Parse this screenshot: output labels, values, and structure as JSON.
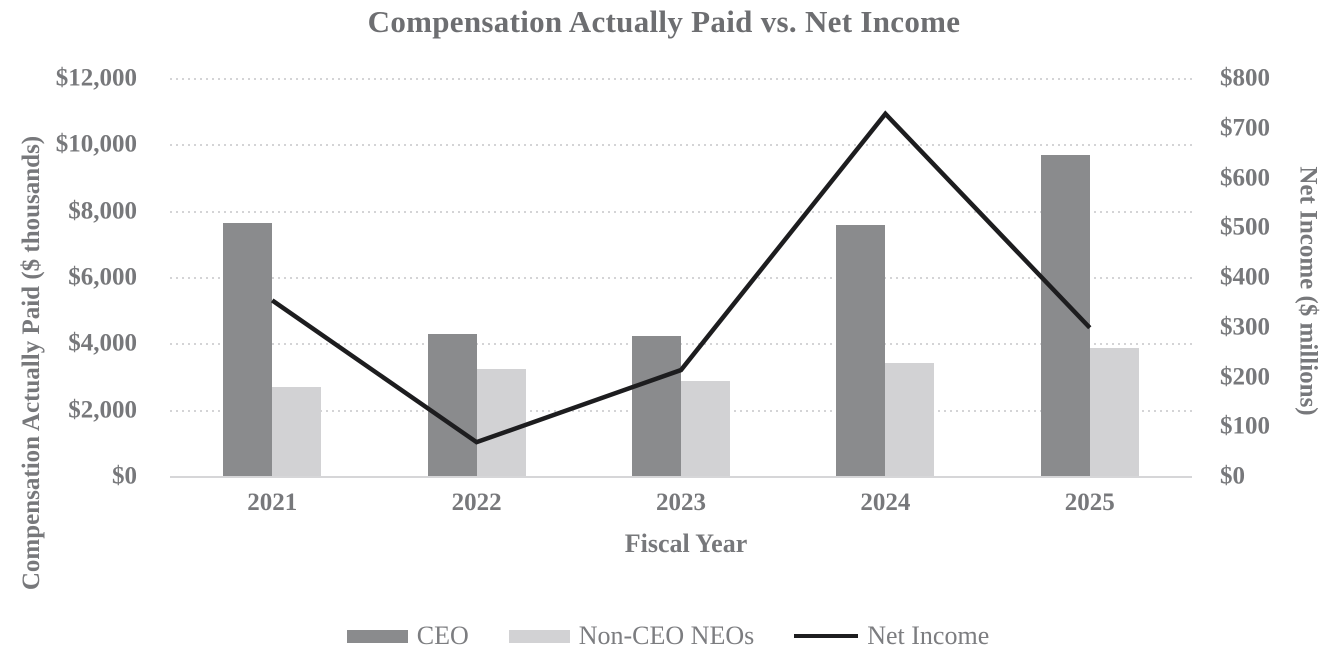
{
  "page": {
    "background": "#ffffff"
  },
  "chart_data": {
    "type": "combo-bar-line",
    "title": "Compensation Actually Paid vs. Net Income",
    "categories": [
      "2021",
      "2022",
      "2023",
      "2024",
      "2025"
    ],
    "series": [
      {
        "name": "CEO",
        "type": "bar",
        "axis": "left",
        "color": "#8a8b8d",
        "values": [
          7650,
          4300,
          4250,
          7600,
          9700
        ]
      },
      {
        "name": "Non-CEO NEOs",
        "type": "bar",
        "axis": "left",
        "color": "#d2d2d4",
        "values": [
          2700,
          3250,
          2900,
          3450,
          3900
        ]
      },
      {
        "name": "Net Income",
        "type": "line",
        "axis": "right",
        "color": "#1d1d1f",
        "values": [
          355,
          70,
          215,
          730,
          300
        ]
      }
    ],
    "x_axis": {
      "title": "Fiscal Year",
      "tick_labels": [
        "2021",
        "2022",
        "2023",
        "2024",
        "2025"
      ]
    },
    "left_axis": {
      "title": "Compensation Actually Paid ($ thousands)",
      "min": 0,
      "max": 12000,
      "tick_step": 2000,
      "tick_labels": [
        "$0",
        "$2,000",
        "$4,000",
        "$6,000",
        "$8,000",
        "$10,000",
        "$12,000"
      ]
    },
    "right_axis": {
      "title": "Net Income ($ millions)",
      "min": 0,
      "max": 800,
      "tick_step": 100,
      "tick_labels": [
        "$0",
        "$100",
        "$200",
        "$300",
        "$400",
        "$500",
        "$600",
        "$700",
        "$800"
      ]
    },
    "grid": {
      "horizontal": "dotted",
      "color": "#d4d4d6"
    },
    "legend": {
      "position": "bottom",
      "entries": [
        "CEO",
        "Non-CEO NEOs",
        "Net Income"
      ]
    }
  }
}
